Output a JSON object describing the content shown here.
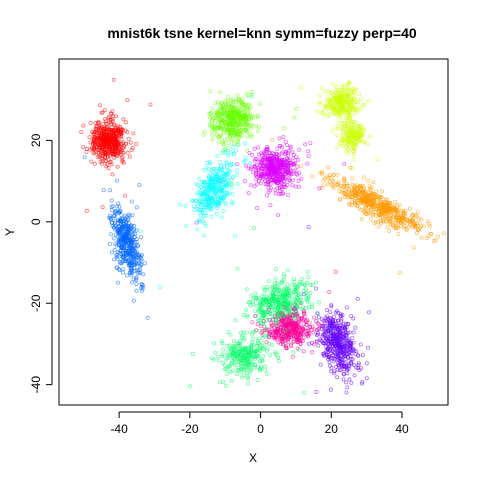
{
  "chart_data": {
    "type": "scatter",
    "title": "mnist6k tsne kernel=knn symm=fuzzy perp=40",
    "xlabel": "X",
    "ylabel": "Y",
    "xlim": [
      -57,
      53
    ],
    "ylim": [
      -45,
      40
    ],
    "xticks": [
      -40,
      -20,
      0,
      20,
      40
    ],
    "yticks": [
      -40,
      -20,
      0,
      20
    ],
    "grid": false,
    "legend": "none",
    "marker": "open-circle",
    "clusters": [
      {
        "color": "#FF0000",
        "center": [
          -43,
          20
        ],
        "spread": [
          4.5,
          4.5
        ],
        "angle": 0,
        "count": 480
      },
      {
        "color": "#0066FF",
        "center": [
          -38,
          -5
        ],
        "spread": [
          3.0,
          8.5
        ],
        "angle": 15,
        "count": 420
      },
      {
        "color": "#00FFFF",
        "center": [
          -13,
          8
        ],
        "spread": [
          4.0,
          8.0
        ],
        "angle": -30,
        "count": 330
      },
      {
        "color": "#66FF00",
        "center": [
          -8,
          25
        ],
        "spread": [
          5.5,
          4.5
        ],
        "angle": 0,
        "count": 400
      },
      {
        "color": "#DD00FF",
        "center": [
          4,
          13
        ],
        "spread": [
          6.0,
          4.5
        ],
        "angle": 0,
        "count": 460
      },
      {
        "color": "#CCFF00",
        "center": [
          23,
          29
        ],
        "spread": [
          4.0,
          4.0
        ],
        "angle": 0,
        "count": 260
      },
      {
        "color": "#CCFF00",
        "center": [
          26,
          21
        ],
        "spread": [
          3.0,
          3.0
        ],
        "angle": 0,
        "count": 160
      },
      {
        "color": "#FF9900",
        "center": [
          33,
          4
        ],
        "spread": [
          13.0,
          2.8
        ],
        "angle": -25,
        "count": 520
      },
      {
        "color": "#00FF66",
        "center": [
          5,
          -20
        ],
        "spread": [
          7.5,
          4.5
        ],
        "angle": 20,
        "count": 380
      },
      {
        "color": "#00FF66",
        "center": [
          -4,
          -33
        ],
        "spread": [
          6.0,
          4.5
        ],
        "angle": 0,
        "count": 260
      },
      {
        "color": "#FF0099",
        "center": [
          8,
          -26
        ],
        "spread": [
          6.5,
          4.0
        ],
        "angle": 10,
        "count": 380
      },
      {
        "color": "#6600FF",
        "center": [
          22,
          -30
        ],
        "spread": [
          4.0,
          7.0
        ],
        "angle": 25,
        "count": 460
      }
    ]
  }
}
